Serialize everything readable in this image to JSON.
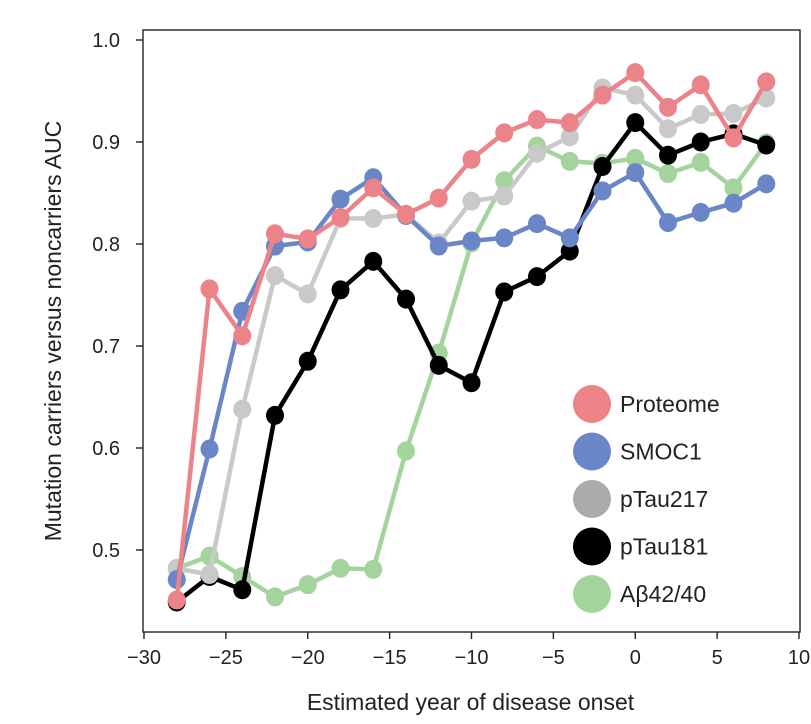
{
  "chart_data": {
    "type": "line",
    "title": "",
    "xlabel": "Estimated year of disease onset",
    "ylabel": "Mutation carriers versus noncarriers AUC",
    "xlim": [
      -30,
      10
    ],
    "ylim": [
      0.41,
      1.0
    ],
    "x_ticks": [
      -30,
      -25,
      -20,
      -15,
      -10,
      -5,
      0,
      5,
      10
    ],
    "x_tick_labels": [
      "−30",
      "−25",
      "−20",
      "−15",
      "−10",
      "−5",
      "0",
      "5",
      "10"
    ],
    "y_ticks": [
      0.5,
      0.6,
      0.7,
      0.8,
      0.9,
      1.0
    ],
    "y_tick_labels": [
      "0.5",
      "0.6",
      "0.7",
      "0.8",
      "0.9",
      "1.0"
    ],
    "grid": false,
    "legend_position": "bottom-right",
    "x": [
      -28,
      -26,
      -24,
      -22,
      -20,
      -18,
      -16,
      -14,
      -12,
      -10,
      -8,
      -6,
      -4,
      -2,
      0,
      2,
      4,
      6,
      8
    ],
    "series": [
      {
        "name": "Aβ42/40",
        "color": "#a3d49c",
        "values": [
          0.482,
          0.494,
          0.474,
          0.454,
          0.466,
          0.482,
          0.481,
          0.597,
          0.693,
          0.801,
          0.862,
          0.896,
          0.881,
          0.879,
          0.884,
          0.869,
          0.88,
          0.855,
          0.899
        ]
      },
      {
        "name": "pTau181",
        "color": "#000000",
        "values": [
          0.449,
          0.474,
          0.461,
          0.632,
          0.685,
          0.755,
          0.783,
          0.746,
          0.681,
          0.664,
          0.753,
          0.768,
          0.793,
          0.876,
          0.919,
          0.887,
          0.9,
          0.908,
          0.897
        ]
      },
      {
        "name": "pTau217",
        "color": "#c9c9c9",
        "values": [
          0.482,
          0.476,
          0.638,
          0.769,
          0.751,
          0.825,
          0.825,
          0.829,
          0.801,
          0.842,
          0.847,
          0.889,
          0.905,
          0.953,
          0.946,
          0.913,
          0.927,
          0.928,
          0.943
        ]
      },
      {
        "name": "SMOC1",
        "color": "#6b86c7",
        "values": [
          0.471,
          0.599,
          0.734,
          0.798,
          0.802,
          0.844,
          0.865,
          0.828,
          0.798,
          0.803,
          0.806,
          0.82,
          0.806,
          0.852,
          0.87,
          0.821,
          0.831,
          0.84,
          0.859
        ]
      },
      {
        "name": "Proteome",
        "color": "#ec8389",
        "values": [
          0.451,
          0.756,
          0.71,
          0.81,
          0.805,
          0.826,
          0.855,
          0.829,
          0.845,
          0.883,
          0.909,
          0.922,
          0.919,
          0.946,
          0.968,
          0.934,
          0.956,
          0.904,
          0.959
        ]
      }
    ],
    "legend": [
      {
        "name": "Proteome",
        "color": "#ec8389"
      },
      {
        "name": "SMOC1",
        "color": "#6b86c7"
      },
      {
        "name": "pTau217",
        "color": "#ababab"
      },
      {
        "name": "pTau181",
        "color": "#000000"
      },
      {
        "name": "Aβ42/40",
        "color": "#a3d49c"
      }
    ]
  }
}
